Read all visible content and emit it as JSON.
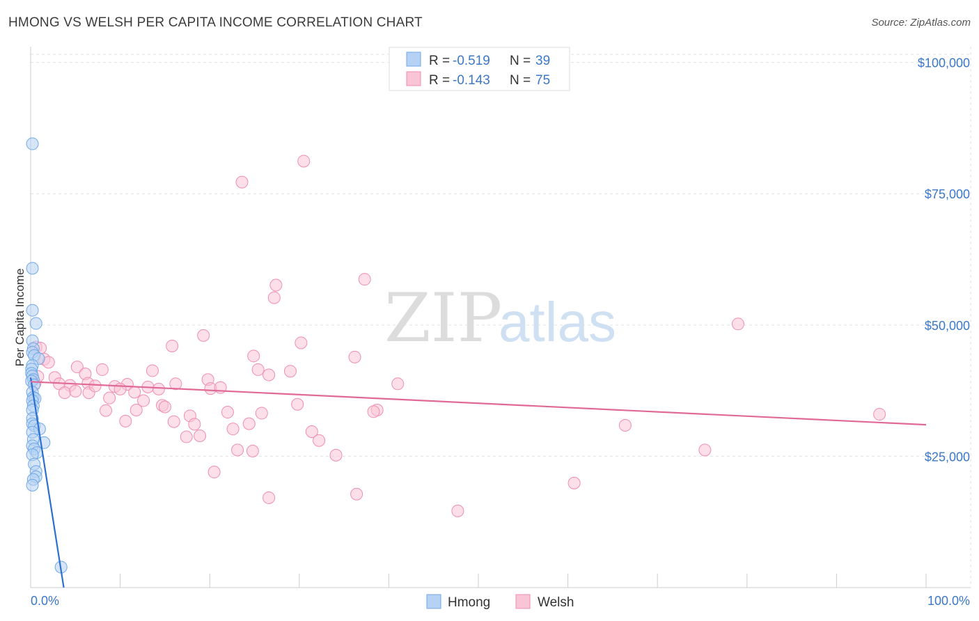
{
  "title": "HMONG VS WELSH PER CAPITA INCOME CORRELATION CHART",
  "source": "Source: ZipAtlas.com",
  "chart_data": {
    "type": "scatter",
    "title": "HMONG VS WELSH PER CAPITA INCOME CORRELATION CHART",
    "xlabel": "",
    "ylabel": "Per Capita Income",
    "xlim": [
      0,
      100
    ],
    "ylim": [
      0,
      103000
    ],
    "x_tick_labels": [
      "0.0%",
      "100.0%"
    ],
    "y_ticks": [
      25000,
      50000,
      75000,
      100000
    ],
    "y_tick_labels": [
      "$25,000",
      "$50,000",
      "$75,000",
      "$100,000"
    ],
    "grid": true,
    "watermark": {
      "zip": "ZIP",
      "atlas": "atlas"
    },
    "legend_box": [
      {
        "r_label": "R =",
        "r_value": "-0.519",
        "n_label": "N =",
        "n_value": "39"
      },
      {
        "r_label": "R =",
        "r_value": "-0.143",
        "n_label": "N =",
        "n_value": "75"
      }
    ],
    "series": [
      {
        "name": "Hmong",
        "color": "#6fa8e8",
        "fill": "#b5d1f3",
        "line_color": "#2b6fd1",
        "r": -0.519,
        "n": 39,
        "trend": {
          "x0": 0.0,
          "y0": 40000,
          "x1": 3.7,
          "y1": 0
        },
        "points": [
          [
            0.2,
            84500
          ],
          [
            0.2,
            60800
          ],
          [
            0.2,
            52800
          ],
          [
            0.6,
            50300
          ],
          [
            0.2,
            47000
          ],
          [
            0.3,
            45500
          ],
          [
            0.2,
            44800
          ],
          [
            0.4,
            44200
          ],
          [
            0.9,
            43600
          ],
          [
            0.2,
            42300
          ],
          [
            0.1,
            41600
          ],
          [
            0.1,
            40800
          ],
          [
            0.2,
            40300
          ],
          [
            0.3,
            39600
          ],
          [
            0.1,
            39300
          ],
          [
            0.4,
            38600
          ],
          [
            0.2,
            37200
          ],
          [
            0.3,
            36200
          ],
          [
            0.5,
            36000
          ],
          [
            0.2,
            35600
          ],
          [
            0.3,
            34600
          ],
          [
            0.2,
            33800
          ],
          [
            0.2,
            32200
          ],
          [
            0.2,
            31200
          ],
          [
            0.4,
            30800
          ],
          [
            1.0,
            30200
          ],
          [
            0.2,
            29600
          ],
          [
            0.3,
            28200
          ],
          [
            1.5,
            27600
          ],
          [
            0.2,
            27000
          ],
          [
            0.4,
            26400
          ],
          [
            0.7,
            25700
          ],
          [
            0.2,
            25300
          ],
          [
            0.4,
            23500
          ],
          [
            0.6,
            22100
          ],
          [
            0.6,
            21100
          ],
          [
            0.3,
            20600
          ],
          [
            0.2,
            19500
          ],
          [
            3.4,
            3900
          ]
        ]
      },
      {
        "name": "Welsh",
        "color": "#f08db0",
        "fill": "#f9c4d6",
        "line_color": "#e06a95",
        "r": -0.143,
        "n": 75,
        "trend": {
          "x0": 0.0,
          "y0": 39200,
          "x1": 100.0,
          "y1": 31000
        },
        "points": [
          [
            30.5,
            81200
          ],
          [
            23.6,
            77200
          ],
          [
            37.3,
            58700
          ],
          [
            27.4,
            57600
          ],
          [
            27.2,
            55200
          ],
          [
            79.0,
            50200
          ],
          [
            19.3,
            48000
          ],
          [
            30.2,
            46600
          ],
          [
            15.8,
            46000
          ],
          [
            0.6,
            45800
          ],
          [
            1.1,
            45600
          ],
          [
            24.9,
            44100
          ],
          [
            36.2,
            43900
          ],
          [
            1.5,
            43500
          ],
          [
            2.0,
            42900
          ],
          [
            5.2,
            42000
          ],
          [
            8.0,
            41500
          ],
          [
            13.6,
            41300
          ],
          [
            25.4,
            41500
          ],
          [
            29.0,
            41200
          ],
          [
            6.1,
            40700
          ],
          [
            26.6,
            40500
          ],
          [
            2.7,
            40000
          ],
          [
            3.2,
            38800
          ],
          [
            19.8,
            39600
          ],
          [
            16.2,
            38800
          ],
          [
            10.8,
            38700
          ],
          [
            4.4,
            38500
          ],
          [
            6.4,
            38900
          ],
          [
            9.4,
            38300
          ],
          [
            13.1,
            38200
          ],
          [
            14.3,
            37800
          ],
          [
            10.0,
            37800
          ],
          [
            20.1,
            37900
          ],
          [
            41.0,
            38800
          ],
          [
            3.8,
            37100
          ],
          [
            5.0,
            37400
          ],
          [
            6.5,
            37100
          ],
          [
            11.6,
            37200
          ],
          [
            8.8,
            36100
          ],
          [
            12.6,
            35600
          ],
          [
            14.7,
            34700
          ],
          [
            15.0,
            34400
          ],
          [
            29.8,
            34900
          ],
          [
            8.4,
            33700
          ],
          [
            11.8,
            33800
          ],
          [
            22.0,
            33400
          ],
          [
            38.7,
            33800
          ],
          [
            25.8,
            33200
          ],
          [
            38.3,
            33500
          ],
          [
            17.8,
            32700
          ],
          [
            94.8,
            33000
          ],
          [
            10.6,
            31700
          ],
          [
            16.0,
            31600
          ],
          [
            18.3,
            31100
          ],
          [
            24.4,
            31200
          ],
          [
            66.4,
            30900
          ],
          [
            22.6,
            30200
          ],
          [
            31.4,
            29700
          ],
          [
            17.4,
            28700
          ],
          [
            18.9,
            28900
          ],
          [
            32.2,
            28000
          ],
          [
            23.1,
            26200
          ],
          [
            24.8,
            26000
          ],
          [
            75.3,
            26200
          ],
          [
            34.1,
            25200
          ],
          [
            20.5,
            22000
          ],
          [
            60.7,
            19900
          ],
          [
            36.4,
            17800
          ],
          [
            26.6,
            17100
          ],
          [
            47.7,
            14600
          ],
          [
            0.5,
            38900
          ],
          [
            0.8,
            40200
          ],
          [
            21.2,
            38100
          ],
          [
            7.2,
            38400
          ]
        ]
      }
    ]
  }
}
